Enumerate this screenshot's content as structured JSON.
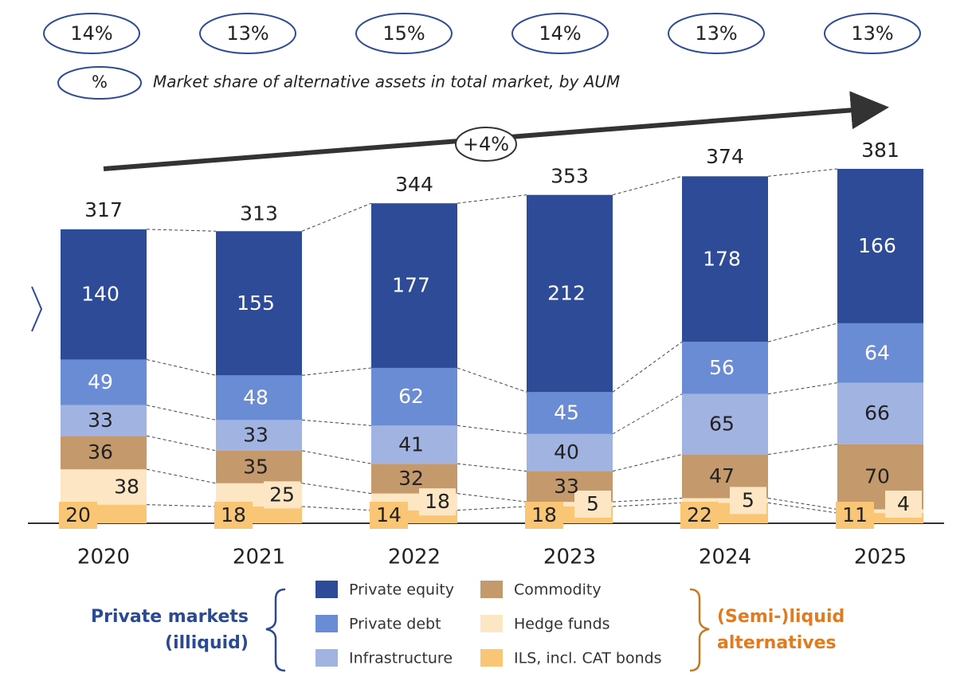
{
  "chart_data": {
    "type": "stacked_bar",
    "categories": [
      "2020",
      "2021",
      "2022",
      "2023",
      "2024",
      "2025"
    ],
    "series": [
      {
        "name": "ILS, incl. CAT bonds",
        "color": "#f8c675",
        "values": [
          20,
          18,
          14,
          18,
          22,
          11
        ]
      },
      {
        "name": "Hedge funds",
        "color": "#fde6c4",
        "values": [
          38,
          25,
          18,
          5,
          5,
          4
        ]
      },
      {
        "name": "Commodity",
        "color": "#c49a6c",
        "values": [
          36,
          35,
          32,
          33,
          47,
          70
        ]
      },
      {
        "name": "Infrastructure",
        "color": "#a1b3e0",
        "values": [
          33,
          33,
          41,
          40,
          65,
          66
        ]
      },
      {
        "name": "Private debt",
        "color": "#6a8cd4",
        "values": [
          49,
          48,
          62,
          45,
          56,
          64
        ]
      },
      {
        "name": "Private equity",
        "color": "#2e4b97",
        "values": [
          140,
          155,
          177,
          212,
          178,
          166
        ]
      }
    ],
    "totals": [
      317,
      313,
      344,
      353,
      374,
      381
    ],
    "market_share": {
      "values": [
        14,
        13,
        15,
        14,
        13,
        13
      ],
      "value_labels": [
        "14%",
        "13%",
        "15%",
        "14%",
        "13%",
        "13%"
      ],
      "legend_symbol": "%",
      "description": "Market share of alternative assets in total market, by AUM"
    },
    "growth_label": "+4%",
    "group_left": [
      "Private markets",
      "(illiquid)"
    ],
    "group_right": [
      "(Semi-)liquid",
      "alternatives"
    ]
  }
}
